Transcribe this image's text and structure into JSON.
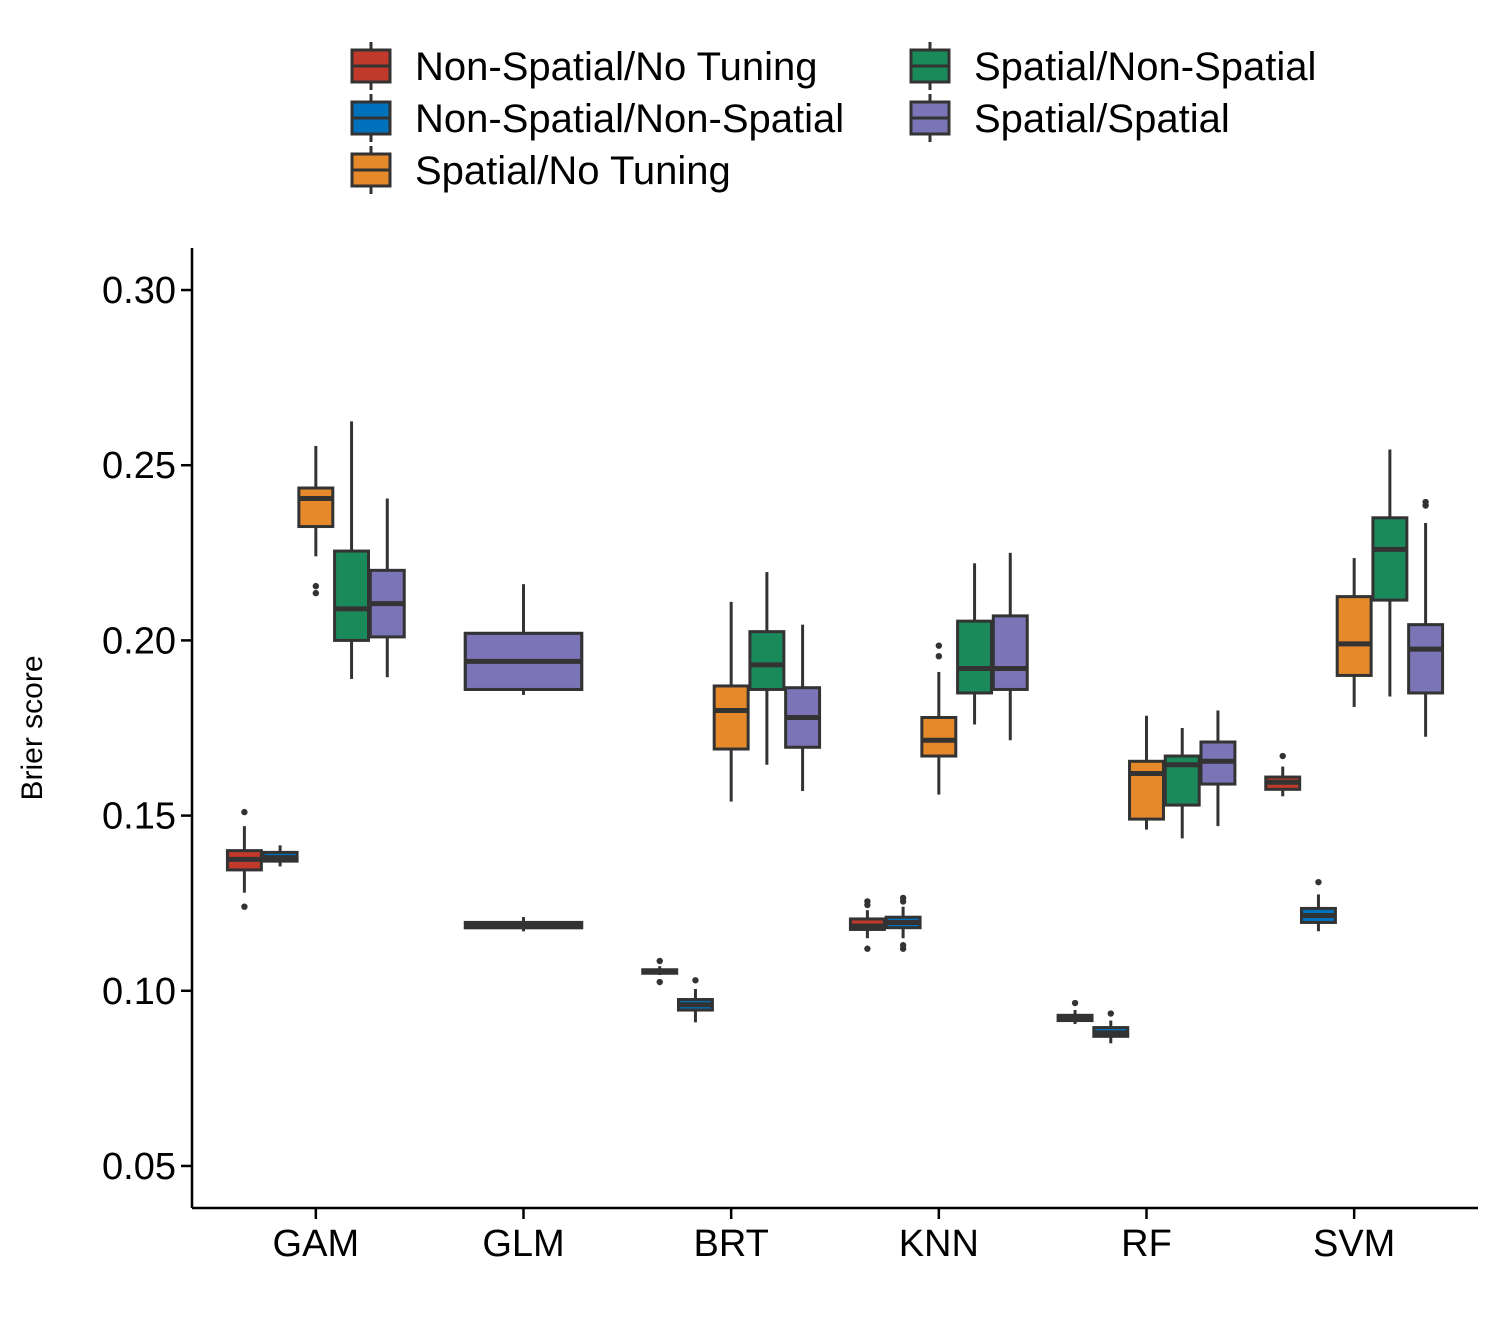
{
  "chart_data": {
    "type": "boxplot",
    "title": "",
    "xlabel": "",
    "ylabel": "Brier score",
    "ylim": [
      0.038,
      0.312
    ],
    "yticks": [
      "0.05",
      "0.10",
      "0.15",
      "0.20",
      "0.25",
      "0.30"
    ],
    "categories": [
      "GAM",
      "GLM",
      "BRT",
      "KNN",
      "RF",
      "SVM"
    ],
    "legend_position": "top",
    "grid": false,
    "series": [
      {
        "name": "Non-Spatial/No Tuning",
        "color": "#C0392B",
        "boxes": [
          {
            "category": "GAM",
            "lower_whisker": 0.128,
            "q1": 0.1345,
            "median": 0.1375,
            "q3": 0.14,
            "upper_whisker": 0.147,
            "outliers": [
              0.124,
              0.151
            ]
          },
          {
            "category": "GLM",
            "lower_whisker": 0.117,
            "q1": 0.118,
            "median": 0.1185,
            "q3": 0.1195,
            "upper_whisker": 0.121,
            "outliers": []
          },
          {
            "category": "BRT",
            "lower_whisker": 0.1045,
            "q1": 0.105,
            "median": 0.1055,
            "q3": 0.106,
            "upper_whisker": 0.107,
            "outliers": [
              0.1025,
              0.1085
            ]
          },
          {
            "category": "KNN",
            "lower_whisker": 0.115,
            "q1": 0.1175,
            "median": 0.1185,
            "q3": 0.1205,
            "upper_whisker": 0.123,
            "outliers": [
              0.112,
              0.1245,
              0.1255
            ]
          },
          {
            "category": "RF",
            "lower_whisker": 0.0905,
            "q1": 0.0915,
            "median": 0.092,
            "q3": 0.093,
            "upper_whisker": 0.0945,
            "outliers": [
              0.0965
            ]
          },
          {
            "category": "SVM",
            "lower_whisker": 0.1555,
            "q1": 0.1575,
            "median": 0.1595,
            "q3": 0.161,
            "upper_whisker": 0.164,
            "outliers": [
              0.167
            ]
          }
        ]
      },
      {
        "name": "Non-Spatial/Non-Spatial",
        "color": "#0072BD",
        "boxes": [
          {
            "category": "GAM",
            "lower_whisker": 0.1355,
            "q1": 0.137,
            "median": 0.138,
            "q3": 0.1395,
            "upper_whisker": 0.1415,
            "outliers": []
          },
          {
            "category": "GLM",
            "lower_whisker": 0.117,
            "q1": 0.118,
            "median": 0.1185,
            "q3": 0.1195,
            "upper_whisker": 0.121,
            "outliers": []
          },
          {
            "category": "BRT",
            "lower_whisker": 0.091,
            "q1": 0.0945,
            "median": 0.096,
            "q3": 0.0975,
            "upper_whisker": 0.1005,
            "outliers": [
              0.103
            ]
          },
          {
            "category": "KNN",
            "lower_whisker": 0.115,
            "q1": 0.118,
            "median": 0.1195,
            "q3": 0.121,
            "upper_whisker": 0.124,
            "outliers": [
              0.112,
              0.113,
              0.1255,
              0.1265
            ]
          },
          {
            "category": "RF",
            "lower_whisker": 0.085,
            "q1": 0.087,
            "median": 0.088,
            "q3": 0.0895,
            "upper_whisker": 0.0915,
            "outliers": [
              0.0935
            ]
          },
          {
            "category": "SVM",
            "lower_whisker": 0.117,
            "q1": 0.1195,
            "median": 0.1215,
            "q3": 0.1235,
            "upper_whisker": 0.1275,
            "outliers": [
              0.131
            ]
          }
        ]
      },
      {
        "name": "Spatial/No Tuning",
        "color": "#E5892A",
        "boxes": [
          {
            "category": "GAM",
            "lower_whisker": 0.224,
            "q1": 0.2325,
            "median": 0.2405,
            "q3": 0.2435,
            "upper_whisker": 0.2555,
            "outliers": [
              0.2135,
              0.2155
            ]
          },
          {
            "category": "GLM",
            "lower_whisker": 0.1845,
            "q1": 0.186,
            "median": 0.194,
            "q3": 0.202,
            "upper_whisker": 0.216,
            "outliers": []
          },
          {
            "category": "BRT",
            "lower_whisker": 0.154,
            "q1": 0.169,
            "median": 0.18,
            "q3": 0.187,
            "upper_whisker": 0.211,
            "outliers": []
          },
          {
            "category": "KNN",
            "lower_whisker": 0.156,
            "q1": 0.167,
            "median": 0.1715,
            "q3": 0.178,
            "upper_whisker": 0.191,
            "outliers": [
              0.1955,
              0.1985
            ]
          },
          {
            "category": "RF",
            "lower_whisker": 0.146,
            "q1": 0.149,
            "median": 0.162,
            "q3": 0.1655,
            "upper_whisker": 0.1785,
            "outliers": []
          },
          {
            "category": "SVM",
            "lower_whisker": 0.181,
            "q1": 0.19,
            "median": 0.199,
            "q3": 0.2125,
            "upper_whisker": 0.2235,
            "outliers": []
          }
        ]
      },
      {
        "name": "Spatial/Non-Spatial",
        "color": "#1B8A5A",
        "boxes": [
          {
            "category": "GAM",
            "lower_whisker": 0.189,
            "q1": 0.2,
            "median": 0.209,
            "q3": 0.2255,
            "upper_whisker": 0.2625,
            "outliers": []
          },
          {
            "category": "GLM",
            "lower_whisker": 0.1845,
            "q1": 0.186,
            "median": 0.194,
            "q3": 0.202,
            "upper_whisker": 0.216,
            "outliers": []
          },
          {
            "category": "BRT",
            "lower_whisker": 0.1645,
            "q1": 0.186,
            "median": 0.193,
            "q3": 0.2025,
            "upper_whisker": 0.2195,
            "outliers": []
          },
          {
            "category": "KNN",
            "lower_whisker": 0.176,
            "q1": 0.185,
            "median": 0.192,
            "q3": 0.2055,
            "upper_whisker": 0.222,
            "outliers": []
          },
          {
            "category": "RF",
            "lower_whisker": 0.1435,
            "q1": 0.153,
            "median": 0.1645,
            "q3": 0.167,
            "upper_whisker": 0.175,
            "outliers": []
          },
          {
            "category": "SVM",
            "lower_whisker": 0.184,
            "q1": 0.2115,
            "median": 0.226,
            "q3": 0.235,
            "upper_whisker": 0.2545,
            "outliers": []
          }
        ]
      },
      {
        "name": "Spatial/Spatial",
        "color": "#7B74B6",
        "boxes": [
          {
            "category": "GAM",
            "lower_whisker": 0.1895,
            "q1": 0.201,
            "median": 0.2105,
            "q3": 0.22,
            "upper_whisker": 0.2405,
            "outliers": []
          },
          {
            "category": "GLM",
            "lower_whisker": 0.1845,
            "q1": 0.186,
            "median": 0.194,
            "q3": 0.202,
            "upper_whisker": 0.216,
            "outliers": []
          },
          {
            "category": "BRT",
            "lower_whisker": 0.157,
            "q1": 0.1695,
            "median": 0.178,
            "q3": 0.1865,
            "upper_whisker": 0.2045,
            "outliers": []
          },
          {
            "category": "KNN",
            "lower_whisker": 0.1715,
            "q1": 0.186,
            "median": 0.192,
            "q3": 0.207,
            "upper_whisker": 0.225,
            "outliers": []
          },
          {
            "category": "RF",
            "lower_whisker": 0.147,
            "q1": 0.159,
            "median": 0.1655,
            "q3": 0.171,
            "upper_whisker": 0.18,
            "outliers": []
          },
          {
            "category": "SVM",
            "lower_whisker": 0.1725,
            "q1": 0.185,
            "median": 0.1975,
            "q3": 0.2045,
            "upper_whisker": 0.2335,
            "outliers": [
              0.2385,
              0.2395
            ]
          }
        ]
      }
    ]
  }
}
